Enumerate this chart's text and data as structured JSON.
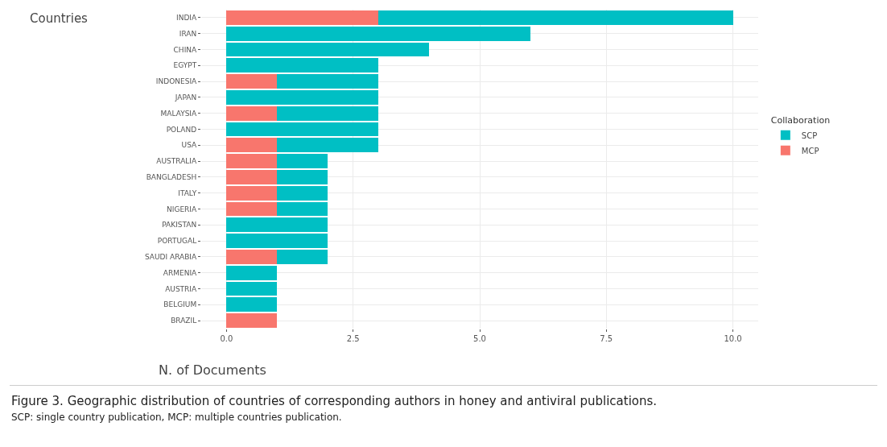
{
  "chart_data": {
    "type": "bar",
    "orientation": "horizontal",
    "stacked": true,
    "ylabel": "Countries",
    "xlabel": "N. of Documents",
    "legend_title": "Collaboration",
    "legend": "right",
    "grid": true,
    "categories": [
      "INDIA",
      "IRAN",
      "CHINA",
      "EGYPT",
      "INDONESIA",
      "JAPAN",
      "MALAYSIA",
      "POLAND",
      "USA",
      "AUSTRALIA",
      "BANGLADESH",
      "ITALY",
      "NIGERIA",
      "PAKISTAN",
      "PORTUGAL",
      "SAUDI ARABIA",
      "ARMENIA",
      "AUSTRIA",
      "BELGIUM",
      "BRAZIL"
    ],
    "series": [
      {
        "name": "MCP",
        "color": "#f8766d",
        "values": [
          3,
          0,
          0,
          0,
          1,
          0,
          1,
          0,
          1,
          1,
          1,
          1,
          1,
          0,
          0,
          1,
          0,
          0,
          0,
          1
        ]
      },
      {
        "name": "SCP",
        "color": "#00bfc4",
        "values": [
          7,
          6,
          4,
          3,
          2,
          3,
          2,
          3,
          2,
          1,
          1,
          1,
          1,
          2,
          2,
          1,
          1,
          1,
          1,
          0
        ]
      }
    ],
    "xlim": [
      -0.5,
      10.5
    ],
    "xticks": [
      {
        "value": 0,
        "label": "0.0"
      },
      {
        "value": 2.5,
        "label": "2.5"
      },
      {
        "value": 5,
        "label": "5.0"
      },
      {
        "value": 7.5,
        "label": "7.5"
      },
      {
        "value": 10,
        "label": "10.0"
      }
    ],
    "annotations": [
      "Figure 3. Geographic distribution of countries of corresponding authors in honey and antiviral publications.",
      "SCP: single country publication, MCP: multiple countries publication."
    ]
  }
}
